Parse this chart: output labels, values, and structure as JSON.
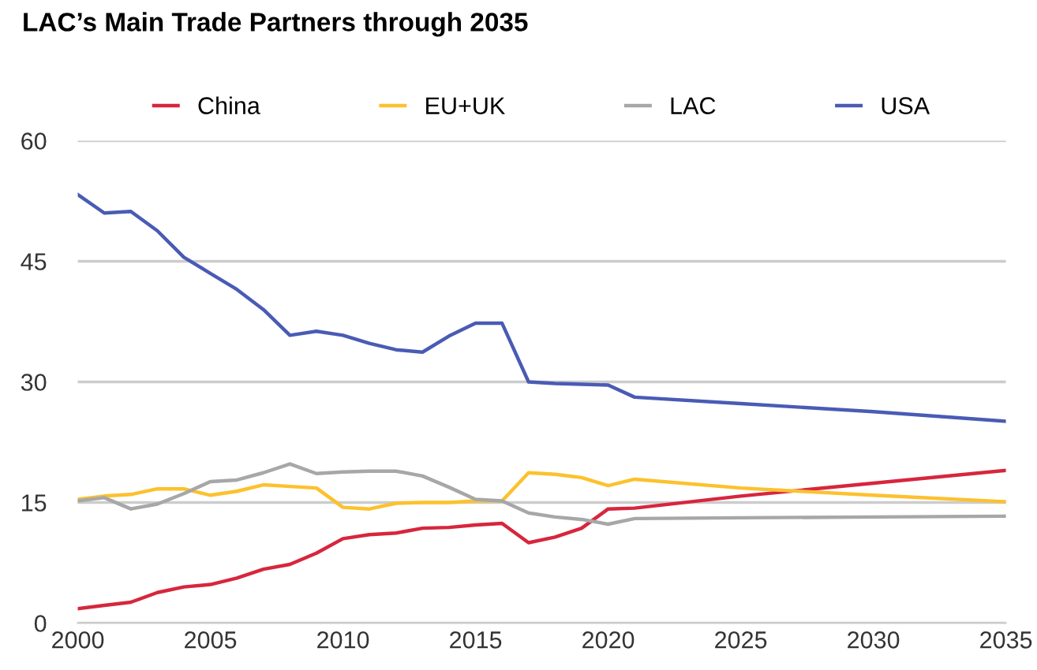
{
  "chart_data": {
    "type": "line",
    "title": "LAC’s Main Trade Partners through 2035",
    "xlim": [
      2000,
      2035
    ],
    "xticks": [
      2000,
      2005,
      2010,
      2015,
      2020,
      2025,
      2030,
      2035
    ],
    "ylim": [
      0,
      60
    ],
    "yticks": [
      0,
      15,
      30,
      45,
      60
    ],
    "grid": "y",
    "legend": "top",
    "line_style": "solid",
    "x": [
      2000,
      2001,
      2002,
      2003,
      2004,
      2005,
      2006,
      2007,
      2008,
      2009,
      2010,
      2011,
      2012,
      2013,
      2014,
      2015,
      2016,
      2017,
      2018,
      2019,
      2020,
      2021,
      2025,
      2030,
      2035
    ],
    "series": [
      {
        "name": "China",
        "color": "#d7263d",
        "values": [
          1.8,
          2.2,
          2.6,
          3.8,
          4.5,
          4.8,
          5.6,
          6.7,
          7.3,
          8.7,
          10.5,
          11,
          11.2,
          11.8,
          11.9,
          12.2,
          12.4,
          10,
          10.7,
          11.8,
          14.2,
          14.3,
          15.8,
          17.4,
          19
        ]
      },
      {
        "name": "EU+UK",
        "color": "#fcc12d",
        "values": [
          15.4,
          15.8,
          16,
          16.7,
          16.7,
          15.9,
          16.4,
          17.2,
          17,
          16.8,
          14.4,
          14.2,
          14.9,
          15,
          15,
          15.2,
          15.2,
          18.7,
          18.5,
          18.1,
          17.1,
          17.9,
          16.8,
          15.9,
          15.1
        ]
      },
      {
        "name": "LAC",
        "color": "#a7a7a7",
        "values": [
          15.2,
          15.6,
          14.2,
          14.8,
          16.1,
          17.6,
          17.8,
          18.7,
          19.8,
          18.6,
          18.8,
          18.9,
          18.9,
          18.3,
          16.9,
          15.4,
          15.2,
          13.7,
          13.2,
          12.9,
          12.3,
          13,
          13.1,
          13.2,
          13.3
        ]
      },
      {
        "name": "USA",
        "color": "#4a5bb5",
        "values": [
          53.3,
          51,
          51.2,
          48.8,
          45.5,
          43.5,
          41.5,
          39,
          35.8,
          36.3,
          35.8,
          34.8,
          34,
          33.7,
          35.7,
          37.3,
          37.3,
          30,
          29.8,
          29.7,
          29.6,
          28.1,
          27.3,
          26.3,
          25.1
        ]
      }
    ]
  }
}
